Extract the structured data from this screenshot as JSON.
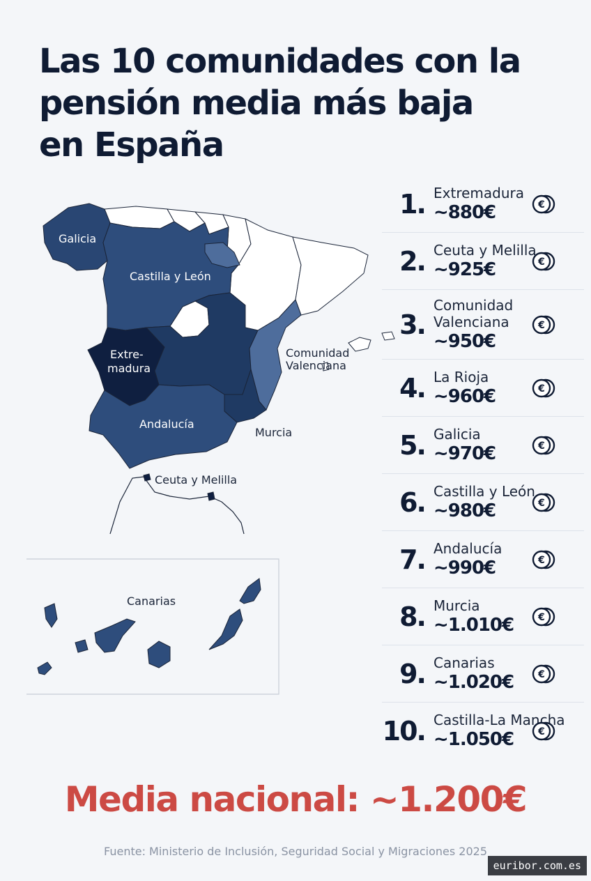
{
  "title_lines": [
    "Las 10 comunidades con la",
    "pensión media más baja",
    "en España"
  ],
  "map_labels": {
    "galicia": "Galicia",
    "castilla_leon": "Castilla y León",
    "extremadura_1": "Extre-",
    "extremadura_2": "madura",
    "valenciana_1": "Comunidad",
    "valenciana_2": "Valenciana",
    "andalucia": "Andalucía",
    "murcia": "Murcia",
    "ceuta_melilla": "Ceuta y Melilla",
    "canarias": "Canarias"
  },
  "ranking": [
    {
      "rank": "1.",
      "name": "Extremadura",
      "value": "~880€"
    },
    {
      "rank": "2.",
      "name": "Ceuta y Melilla",
      "value": "~925€"
    },
    {
      "rank": "3.",
      "name": "Comunidad Valenciana",
      "value": "~950€"
    },
    {
      "rank": "4.",
      "name": "La Rioja",
      "value": "~960€"
    },
    {
      "rank": "5.",
      "name": "Galicia",
      "value": "~970€"
    },
    {
      "rank": "6.",
      "name": "Castilla y León",
      "value": "~980€"
    },
    {
      "rank": "7.",
      "name": "Andalucía",
      "value": "~990€"
    },
    {
      "rank": "8.",
      "name": "Murcia",
      "value": "~1.010€"
    },
    {
      "rank": "9.",
      "name": "Canarias",
      "value": "~1.020€"
    },
    {
      "rank": "10.",
      "name": "Castilla-La Mancha",
      "value": "~1.050€"
    }
  ],
  "coin_icon": "euro-coin-icon",
  "national_average": "Media nacional: ~1.200€",
  "source": "Fuente: Ministerio de Inclusión, Seguridad Social y Migraciones 2025",
  "watermark": "euribor.com.es",
  "colors": {
    "darkest": "#0f1f40",
    "dark": "#1f3a63",
    "medium": "#2e4d7c",
    "light": "#4e6d9c",
    "accent_red": "#cc4a44"
  }
}
